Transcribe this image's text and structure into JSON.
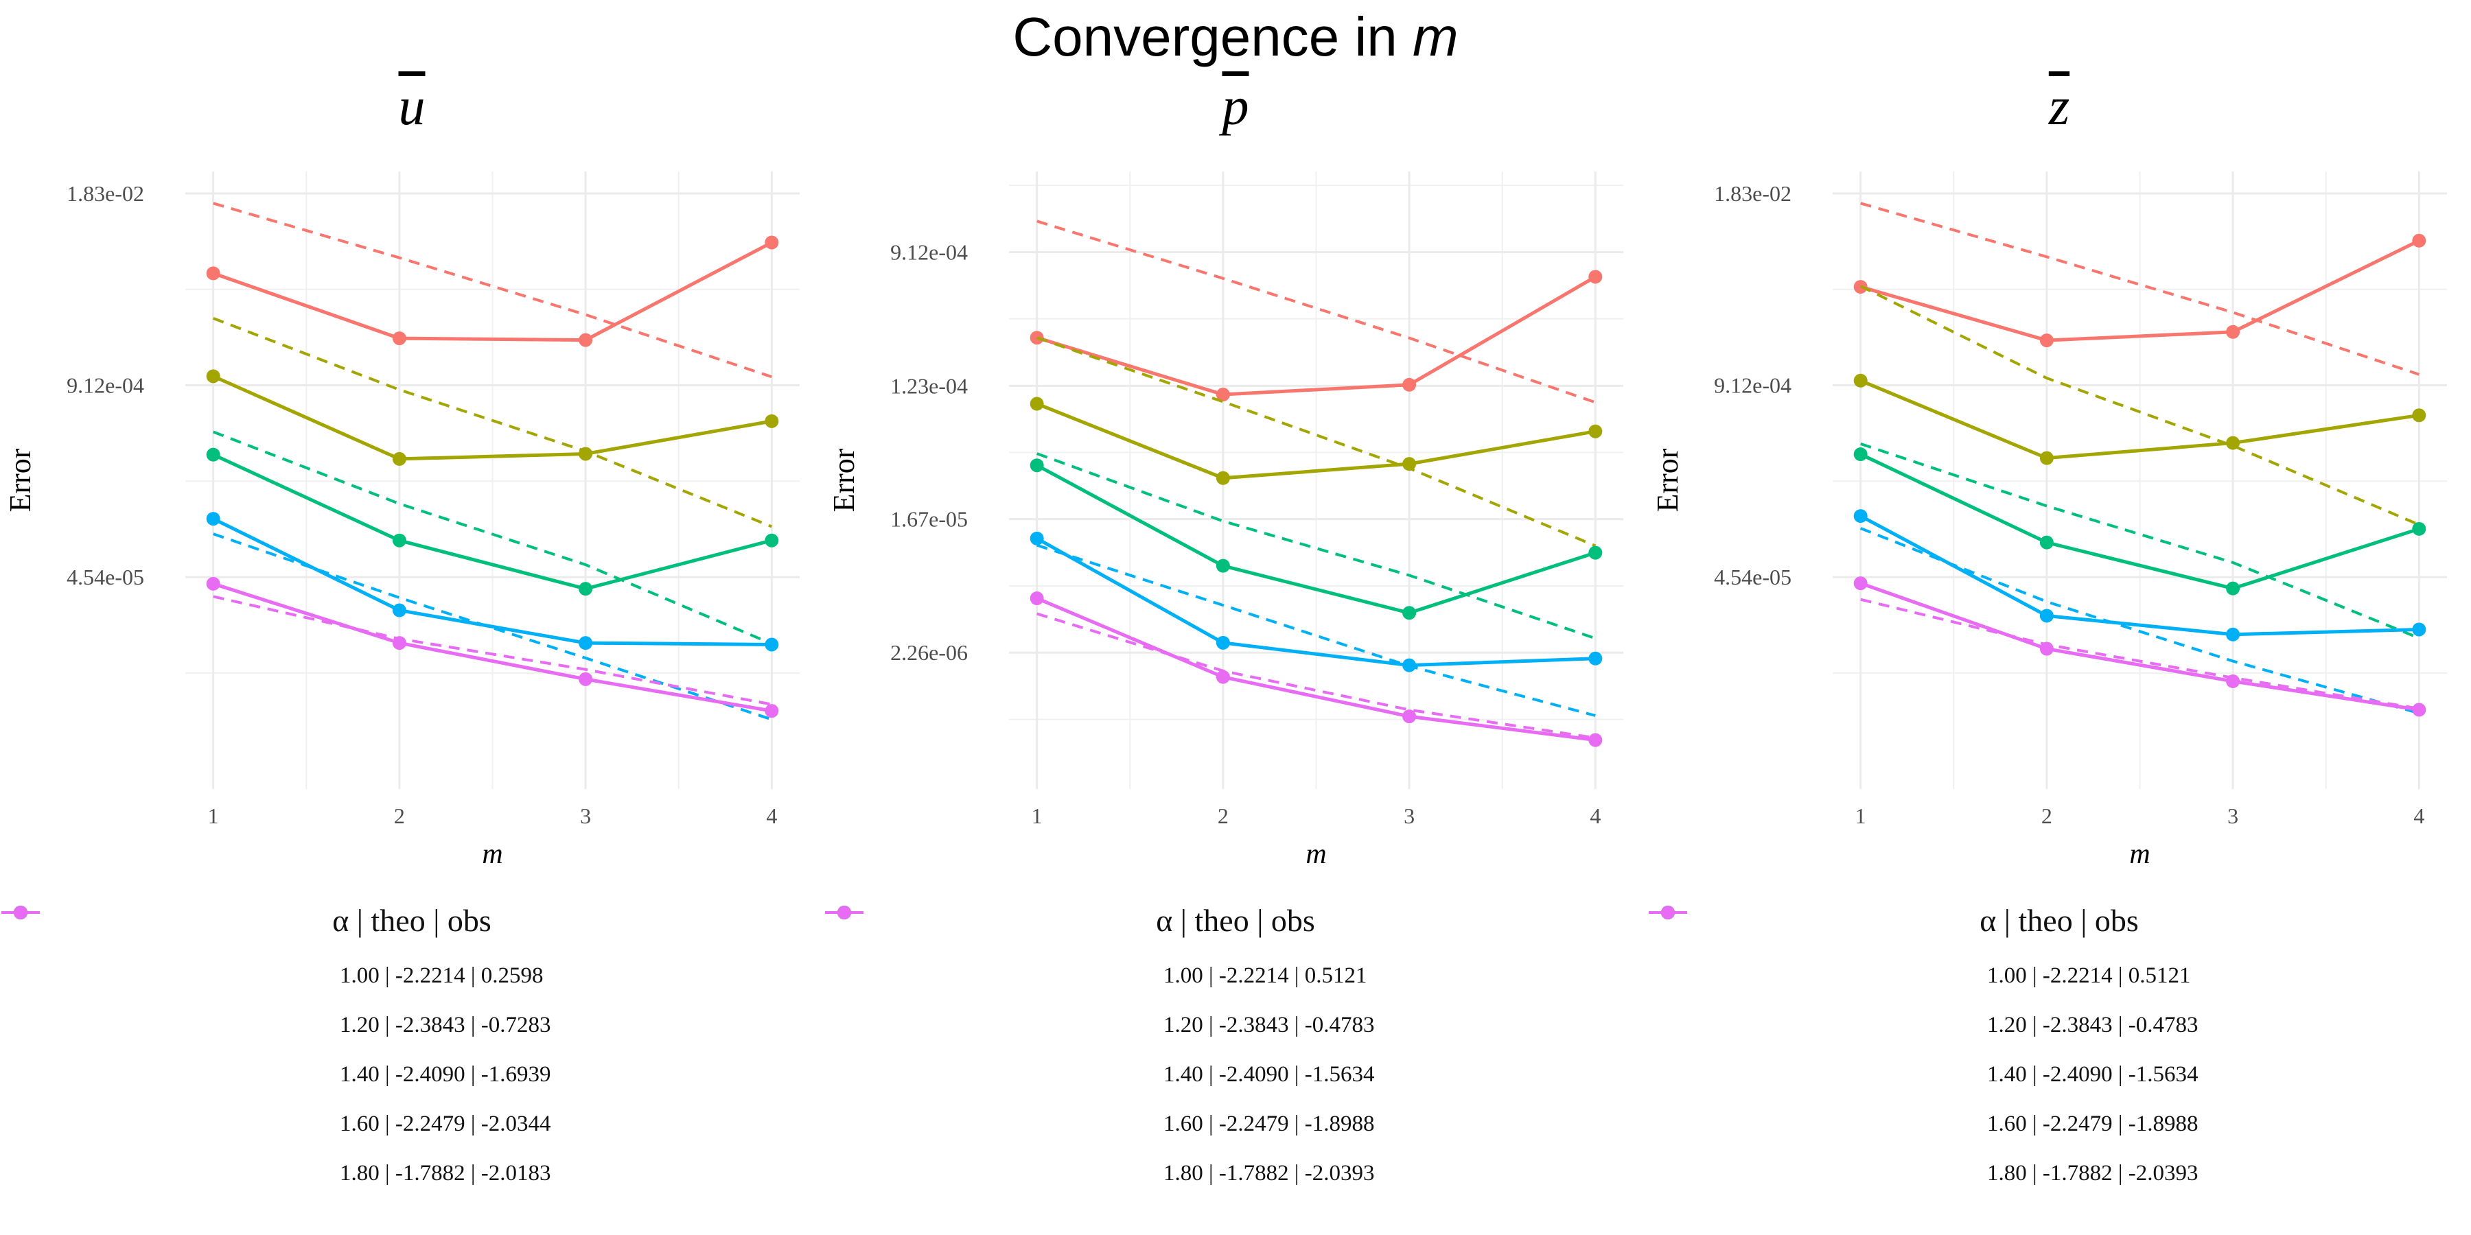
{
  "title": "Convergence in",
  "title_var": "m",
  "chart_data": [
    {
      "type": "line",
      "title": "u",
      "xlabel": "m",
      "ylabel": "Error",
      "scale": "log",
      "x": [
        1,
        2,
        3,
        4
      ],
      "xticks": [
        "1",
        "2",
        "3",
        "4"
      ],
      "yticks": [
        {
          "label": "1.83e-02",
          "value": 0.0183
        },
        {
          "label": "9.12e-04",
          "value": 0.000912
        },
        {
          "label": "4.54e-05",
          "value": 4.54e-05
        }
      ],
      "ylim": [
        1.65e-06,
        0.0258
      ],
      "legend_title": "α   |  theo   |  obs",
      "series": [
        {
          "name": "1.00  |  -2.2214  |  0.2598",
          "color": "#F8766D",
          "observed": [
            0.00525,
            0.0019,
            0.00185,
            0.0085
          ],
          "theoretical": [
            0.0157,
            0.0067,
            0.00275,
            0.00104
          ]
        },
        {
          "name": "1.20  |  -2.3843  |  -0.7283",
          "color": "#A3A500",
          "observed": [
            0.00105,
            0.000288,
            0.000312,
            0.00052
          ],
          "theoretical": [
            0.0026,
            0.00085,
            0.000325,
            0.0001
          ]
        },
        {
          "name": "1.40  |  -2.4090  |  -1.6939",
          "color": "#00BF7D",
          "observed": [
            0.000308,
            8.05e-05,
            3.78e-05,
            8.05e-05
          ],
          "theoretical": [
            0.00044,
            0.000143,
            5.51e-05,
            1.6e-05
          ]
        },
        {
          "name": "1.60  |  -2.2479  |  -2.0344",
          "color": "#00B0F6",
          "observed": [
            0.000113,
            2.7e-05,
            1.62e-05,
            1.58e-05
          ],
          "theoretical": [
            8.92e-05,
            3.29e-05,
            1.28e-05,
            4.9e-06
          ]
        },
        {
          "name": "1.80  |  -1.7882  |  -2.0183",
          "color": "#E76BF3",
          "observed": [
            4.09e-05,
            1.62e-05,
            9.2e-06,
            5.6e-06
          ],
          "theoretical": [
            3.35e-05,
            1.73e-05,
            1.07e-05,
            6.2e-06
          ]
        }
      ]
    },
    {
      "type": "line",
      "title": "p",
      "xlabel": "m",
      "ylabel": "Error",
      "scale": "log",
      "x": [
        1,
        2,
        3,
        4
      ],
      "xticks": [
        "1",
        "2",
        "3",
        "4"
      ],
      "yticks": [
        {
          "label": "9.12e-04",
          "value": 0.000912
        },
        {
          "label": "1.23e-04",
          "value": 0.000123
        },
        {
          "label": "1.67e-05",
          "value": 1.67e-05
        },
        {
          "label": "2.26e-06",
          "value": 2.26e-06
        }
      ],
      "ylim": [
        2.93e-07,
        0.00305
      ],
      "legend_title": "α   |  theo   |  obs",
      "series": [
        {
          "name": "1.00  |  -2.2214  |  0.5121",
          "color": "#F8766D",
          "observed": [
            0.000253,
            0.000108,
            0.000125,
            0.00063
          ],
          "theoretical": [
            0.00145,
            0.000615,
            0.000252,
            9.6e-05
          ]
        },
        {
          "name": "1.20  |  -2.3843  |  -0.4783",
          "color": "#A3A500",
          "observed": [
            9.4e-05,
            3.09e-05,
            3.82e-05,
            6.22e-05
          ],
          "theoretical": [
            0.000253,
            9.7e-05,
            3.58e-05,
            1.12e-05
          ]
        },
        {
          "name": "1.40  |  -2.4090  |  -1.5634",
          "color": "#00BF7D",
          "observed": [
            3.74e-05,
            8.3e-06,
            4.1e-06,
            1.01e-05
          ],
          "theoretical": [
            4.46e-05,
            1.62e-05,
            7.2e-06,
            2.8e-06
          ]
        },
        {
          "name": "1.60  |  -2.2479  |  -1.8988",
          "color": "#00B0F6",
          "observed": [
            1.25e-05,
            2.62e-06,
            1.87e-06,
            2.07e-06
          ],
          "theoretical": [
            1.13e-05,
            4.6e-06,
            1.85e-06,
            8.8e-07
          ]
        },
        {
          "name": "1.80  |  -1.7882  |  -2.0393",
          "color": "#E76BF3",
          "observed": [
            5.1e-06,
            1.57e-06,
            8.7e-07,
            6.1e-07
          ],
          "theoretical": [
            4.05e-06,
            1.72e-06,
            9.6e-07,
            6.3e-07
          ]
        }
      ]
    },
    {
      "type": "line",
      "title": "z",
      "xlabel": "m",
      "ylabel": "Error",
      "scale": "log",
      "x": [
        1,
        2,
        3,
        4
      ],
      "xticks": [
        "1",
        "2",
        "3",
        "4"
      ],
      "yticks": [
        {
          "label": "1.83e-02",
          "value": 0.0183
        },
        {
          "label": "9.12e-04",
          "value": 0.000912
        },
        {
          "label": "4.54e-05",
          "value": 4.54e-05
        }
      ],
      "ylim": [
        1.65e-06,
        0.0258
      ],
      "legend_title": "α   |  theo   |  obs",
      "series": [
        {
          "name": "1.00  |  -2.2214  |  0.5121",
          "color": "#F8766D",
          "observed": [
            0.00425,
            0.00184,
            0.0021,
            0.00875
          ],
          "theoretical": [
            0.0157,
            0.0068,
            0.00285,
            0.00108
          ]
        },
        {
          "name": "1.20  |  -2.3843  |  -0.4783",
          "color": "#A3A500",
          "observed": [
            0.00098,
            0.000292,
            0.00037,
            0.00057
          ],
          "theoretical": [
            0.0043,
            0.00102,
            0.000354,
            0.000103
          ]
        },
        {
          "name": "1.40  |  -2.4090  |  -1.5634",
          "color": "#00BF7D",
          "observed": [
            0.00031,
            7.8e-05,
            3.8e-05,
            9.65e-05
          ],
          "theoretical": [
            0.000365,
            0.000138,
            5.7e-05,
            1.75e-05
          ]
        },
        {
          "name": "1.60  |  -2.2479  |  -1.8988",
          "color": "#00B0F6",
          "observed": [
            0.000118,
            2.48e-05,
            1.85e-05,
            2e-05
          ],
          "theoretical": [
            9.74e-05,
            3.09e-05,
            1.22e-05,
            5.4e-06
          ]
        },
        {
          "name": "1.80  |  -1.7882  |  -2.0393",
          "color": "#E76BF3",
          "observed": [
            4.12e-05,
            1.48e-05,
            8.9e-06,
            5.7e-06
          ],
          "theoretical": [
            3.2e-05,
            1.58e-05,
            9.4e-06,
            5.8e-06
          ]
        }
      ]
    }
  ]
}
